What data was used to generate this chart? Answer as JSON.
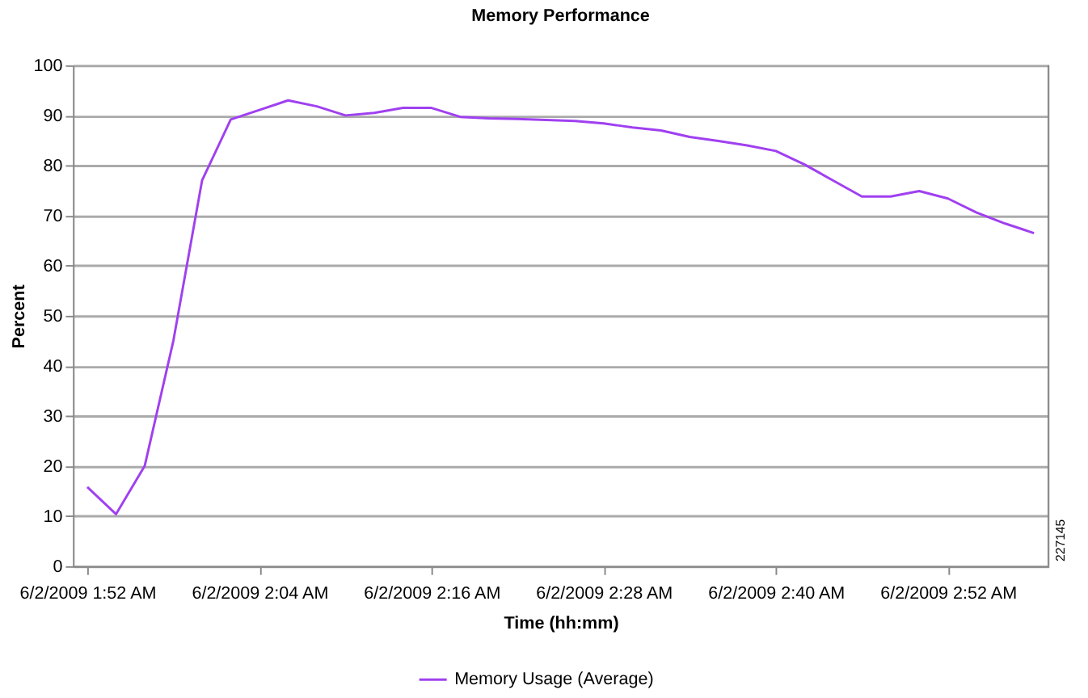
{
  "chart_data": {
    "type": "line",
    "title": "Memory Performance",
    "xlabel": "Time (hh:mm)",
    "ylabel": "Percent",
    "x": [
      "2009-06-02T01:52",
      "2009-06-02T01:54",
      "2009-06-02T01:56",
      "2009-06-02T01:58",
      "2009-06-02T02:00",
      "2009-06-02T02:02",
      "2009-06-02T02:04",
      "2009-06-02T02:06",
      "2009-06-02T02:08",
      "2009-06-02T02:10",
      "2009-06-02T02:12",
      "2009-06-02T02:14",
      "2009-06-02T02:16",
      "2009-06-02T02:18",
      "2009-06-02T02:20",
      "2009-06-02T02:22",
      "2009-06-02T02:24",
      "2009-06-02T02:26",
      "2009-06-02T02:28",
      "2009-06-02T02:30",
      "2009-06-02T02:32",
      "2009-06-02T02:34",
      "2009-06-02T02:36",
      "2009-06-02T02:38",
      "2009-06-02T02:40",
      "2009-06-02T02:42",
      "2009-06-02T02:44",
      "2009-06-02T02:46",
      "2009-06-02T02:48",
      "2009-06-02T02:50",
      "2009-06-02T02:52",
      "2009-06-02T02:54",
      "2009-06-02T02:56",
      "2009-06-02T02:58"
    ],
    "series": [
      {
        "name": "Memory Usage (Average)",
        "color": "#a040f0",
        "values": [
          15.8,
          10.4,
          20,
          45,
          77,
          89.2,
          91.1,
          93,
          91.8,
          90,
          90.5,
          91.5,
          91.5,
          89.7,
          89.4,
          89.3,
          89.1,
          88.9,
          88.4,
          87.6,
          87,
          85.7,
          84.9,
          84,
          82.9,
          80.2,
          77,
          73.8,
          73.8,
          74.9,
          73.4,
          70.6,
          68.4,
          66.5
        ]
      }
    ],
    "xlim": [
      "2009-06-02T01:51",
      "2009-06-02T02:59"
    ],
    "ylim": [
      0,
      100
    ],
    "yticks": [
      0,
      10,
      20,
      30,
      40,
      50,
      60,
      70,
      80,
      90,
      100
    ],
    "xticks": [
      {
        "value": "2009-06-02T01:52",
        "label": "6/2/2009 1:52 AM"
      },
      {
        "value": "2009-06-02T02:04",
        "label": "6/2/2009 2:04 AM"
      },
      {
        "value": "2009-06-02T02:16",
        "label": "6/2/2009 2:16 AM"
      },
      {
        "value": "2009-06-02T02:28",
        "label": "6/2/2009 2:28 AM"
      },
      {
        "value": "2009-06-02T02:40",
        "label": "6/2/2009 2:40 AM"
      },
      {
        "value": "2009-06-02T02:52",
        "label": "6/2/2009 2:52 AM"
      }
    ],
    "grid": "y",
    "legend": "bottom",
    "line_style": "solid",
    "annotations": [
      "227145"
    ]
  }
}
